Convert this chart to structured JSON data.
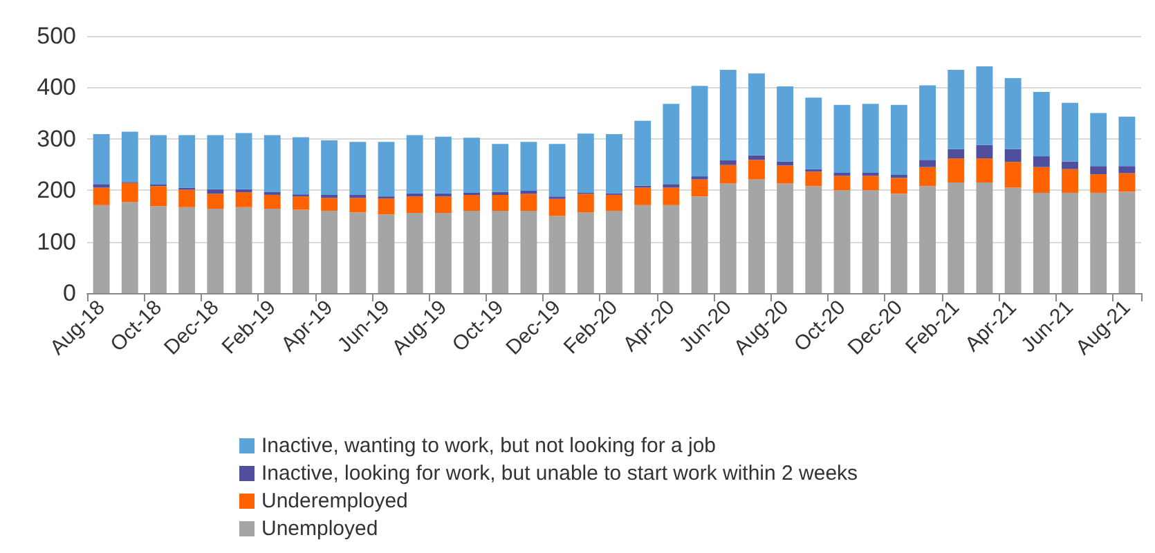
{
  "chart_data": {
    "type": "bar",
    "stacked": true,
    "categories": [
      "Aug-18",
      null,
      "Oct-18",
      null,
      "Dec-18",
      null,
      "Feb-19",
      null,
      "Apr-19",
      null,
      "Jun-19",
      null,
      "Aug-19",
      null,
      "Oct-19",
      null,
      "Dec-19",
      null,
      "Feb-20",
      null,
      "Apr-20",
      null,
      "Jun-20",
      null,
      "Aug-20",
      null,
      "Oct-20",
      null,
      "Dec-20",
      null,
      "Feb-21",
      null,
      "Apr-21",
      null,
      "Jun-21",
      null,
      "Aug-21"
    ],
    "series": [
      {
        "name": "Unemployed",
        "color": "#a5a5a5",
        "values": [
          171,
          177,
          169,
          167,
          164,
          167,
          164,
          162,
          160,
          157,
          153,
          156,
          156,
          160,
          160,
          160,
          150,
          157,
          160,
          171,
          171,
          188,
          213,
          221,
          213,
          208,
          200,
          200,
          193,
          208,
          215,
          215,
          205,
          195,
          195,
          195,
          197
        ]
      },
      {
        "name": "Underemployed",
        "color": "#ff6200",
        "values": [
          34,
          37,
          39,
          34,
          29,
          29,
          27,
          26,
          25,
          28,
          31,
          32,
          32,
          31,
          31,
          33,
          33,
          36,
          31,
          34,
          34,
          33,
          36,
          38,
          35,
          28,
          28,
          28,
          31,
          37,
          47,
          47,
          50,
          50,
          46,
          36,
          36
        ]
      },
      {
        "name": "Inactive, looking for work, but unable to start work within 2 weeks",
        "color": "#4f4f9e",
        "values": [
          7,
          2,
          3,
          4,
          9,
          6,
          6,
          4,
          6,
          6,
          4,
          6,
          6,
          4,
          6,
          6,
          5,
          2,
          3,
          4,
          7,
          6,
          9,
          9,
          8,
          5,
          6,
          6,
          6,
          14,
          18,
          26,
          25,
          21,
          15,
          16,
          14
        ]
      },
      {
        "name": "Inactive, wanting to work, but not looking for a job",
        "color": "#5ba3d9",
        "values": [
          97,
          98,
          96,
          102,
          105,
          109,
          110,
          111,
          106,
          103,
          106,
          113,
          110,
          107,
          93,
          95,
          102,
          115,
          115,
          126,
          156,
          176,
          176,
          159,
          146,
          139,
          132,
          134,
          136,
          145,
          154,
          153,
          138,
          125,
          114,
          103,
          96
        ]
      }
    ],
    "ylim": [
      0,
      500
    ],
    "yticks": [
      0,
      100,
      200,
      300,
      400,
      500
    ],
    "grid": "y",
    "legend": "bottom"
  }
}
